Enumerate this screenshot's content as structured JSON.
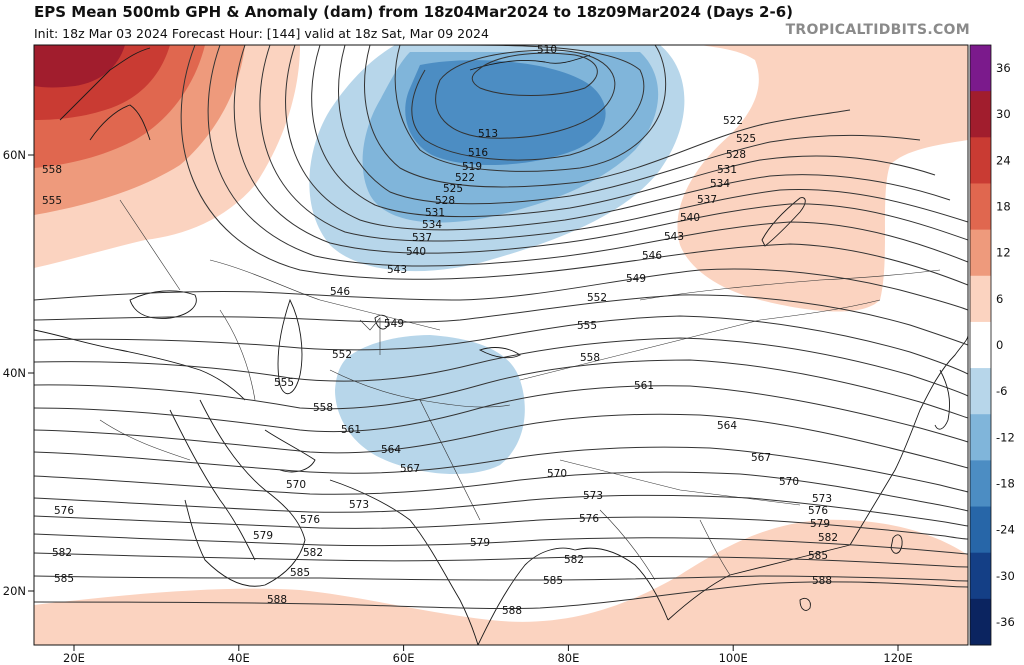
{
  "header": {
    "title": "EPS Mean 500mb GPH & Anomaly (dam) from 18z04Mar2024 to 18z09Mar2024 (Days 2-6)",
    "subtitle": "Init: 18z Mar 03 2024   Forecast Hour: [144]   valid at 18z Sat, Mar 09 2024",
    "credit": "TROPICALTIDBITS.COM"
  },
  "map": {
    "lat_ticks": [
      {
        "value": 60,
        "label": "60N"
      },
      {
        "value": 40,
        "label": "40N"
      },
      {
        "value": 20,
        "label": "20N"
      }
    ],
    "lon_ticks": [
      {
        "value": 20,
        "label": "20E"
      },
      {
        "value": 40,
        "label": "40E"
      },
      {
        "value": 60,
        "label": "60E"
      },
      {
        "value": 80,
        "label": "80E"
      },
      {
        "value": 100,
        "label": "100E"
      },
      {
        "value": 120,
        "label": "120E"
      }
    ],
    "contour_labels": [
      "510",
      "513",
      "516",
      "519",
      "522",
      "525",
      "528",
      "531",
      "534",
      "537",
      "540",
      "543",
      "546",
      "549",
      "552",
      "555",
      "558",
      "561",
      "564",
      "567",
      "570",
      "573",
      "576",
      "579",
      "582",
      "585",
      "588"
    ],
    "anomaly_regions": [
      {
        "name": "warm-anomaly-europe",
        "sign": "positive",
        "peak": 30
      },
      {
        "name": "cold-anomaly-west-siberia",
        "sign": "negative",
        "peak": -24
      },
      {
        "name": "warm-anomaly-east-asia",
        "sign": "positive",
        "peak": 6
      },
      {
        "name": "cold-anomaly-central-asia",
        "sign": "negative",
        "peak": -6
      },
      {
        "name": "warm-anomaly-south-asia",
        "sign": "positive",
        "peak": 6
      }
    ]
  },
  "colorbar": {
    "levels": [
      {
        "label": "36",
        "color": "#7b1a8c"
      },
      {
        "label": "30",
        "color": "#a11d2d"
      },
      {
        "label": "24",
        "color": "#c93b33"
      },
      {
        "label": "18",
        "color": "#e0674f"
      },
      {
        "label": "12",
        "color": "#ee9a7c"
      },
      {
        "label": "6",
        "color": "#fbd3c0"
      },
      {
        "label": "0",
        "color": "#ffffff"
      },
      {
        "label": "-6",
        "color": "#b7d6ea"
      },
      {
        "label": "-12",
        "color": "#80b5da"
      },
      {
        "label": "-18",
        "color": "#4c8dc3"
      },
      {
        "label": "-24",
        "color": "#2766a8"
      },
      {
        "label": "-30",
        "color": "#143f86"
      },
      {
        "label": "-36",
        "color": "#0b2460"
      }
    ]
  }
}
